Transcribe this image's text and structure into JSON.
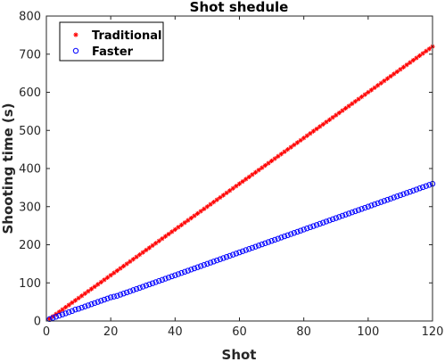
{
  "chart_data": {
    "type": "scatter",
    "title": "Shot shedule",
    "xlabel": "Shot",
    "ylabel": "Shooting time (s)",
    "xlim": [
      0,
      120
    ],
    "ylim": [
      0,
      800
    ],
    "xticks": [
      0,
      20,
      40,
      60,
      80,
      100,
      120
    ],
    "yticks": [
      0,
      100,
      200,
      300,
      400,
      500,
      600,
      700,
      800
    ],
    "grid": false,
    "legend_position": "top-left",
    "series": [
      {
        "name": "Traditional",
        "marker": "asterisk",
        "color": "#ff0000",
        "x": [
          1,
          2,
          3,
          4,
          5,
          6,
          7,
          8,
          9,
          10,
          11,
          12,
          13,
          14,
          15,
          16,
          17,
          18,
          19,
          20,
          21,
          22,
          23,
          24,
          25,
          26,
          27,
          28,
          29,
          30,
          31,
          32,
          33,
          34,
          35,
          36,
          37,
          38,
          39,
          40,
          41,
          42,
          43,
          44,
          45,
          46,
          47,
          48,
          49,
          50,
          51,
          52,
          53,
          54,
          55,
          56,
          57,
          58,
          59,
          60,
          61,
          62,
          63,
          64,
          65,
          66,
          67,
          68,
          69,
          70,
          71,
          72,
          73,
          74,
          75,
          76,
          77,
          78,
          79,
          80,
          81,
          82,
          83,
          84,
          85,
          86,
          87,
          88,
          89,
          90,
          91,
          92,
          93,
          94,
          95,
          96,
          97,
          98,
          99,
          100,
          101,
          102,
          103,
          104,
          105,
          106,
          107,
          108,
          109,
          110,
          111,
          112,
          113,
          114,
          115,
          116,
          117,
          118,
          119,
          120
        ],
        "y": [
          6,
          12,
          18,
          24,
          30,
          36,
          42,
          48,
          54,
          60,
          66,
          72,
          78,
          84,
          90,
          96,
          102,
          108,
          114,
          120,
          126,
          132,
          138,
          144,
          150,
          156,
          162,
          168,
          174,
          180,
          186,
          192,
          198,
          204,
          210,
          216,
          222,
          228,
          234,
          240,
          246,
          252,
          258,
          264,
          270,
          276,
          282,
          288,
          294,
          300,
          306,
          312,
          318,
          324,
          330,
          336,
          342,
          348,
          354,
          360,
          366,
          372,
          378,
          384,
          390,
          396,
          402,
          408,
          414,
          420,
          426,
          432,
          438,
          444,
          450,
          456,
          462,
          468,
          474,
          480,
          486,
          492,
          498,
          504,
          510,
          516,
          522,
          528,
          534,
          540,
          546,
          552,
          558,
          564,
          570,
          576,
          582,
          588,
          594,
          600,
          606,
          612,
          618,
          624,
          630,
          636,
          642,
          648,
          654,
          660,
          666,
          672,
          678,
          684,
          690,
          696,
          702,
          708,
          714,
          720
        ]
      },
      {
        "name": "Faster",
        "marker": "circle",
        "color": "#0000ff",
        "x": [
          1,
          2,
          3,
          4,
          5,
          6,
          7,
          8,
          9,
          10,
          11,
          12,
          13,
          14,
          15,
          16,
          17,
          18,
          19,
          20,
          21,
          22,
          23,
          24,
          25,
          26,
          27,
          28,
          29,
          30,
          31,
          32,
          33,
          34,
          35,
          36,
          37,
          38,
          39,
          40,
          41,
          42,
          43,
          44,
          45,
          46,
          47,
          48,
          49,
          50,
          51,
          52,
          53,
          54,
          55,
          56,
          57,
          58,
          59,
          60,
          61,
          62,
          63,
          64,
          65,
          66,
          67,
          68,
          69,
          70,
          71,
          72,
          73,
          74,
          75,
          76,
          77,
          78,
          79,
          80,
          81,
          82,
          83,
          84,
          85,
          86,
          87,
          88,
          89,
          90,
          91,
          92,
          93,
          94,
          95,
          96,
          97,
          98,
          99,
          100,
          101,
          102,
          103,
          104,
          105,
          106,
          107,
          108,
          109,
          110,
          111,
          112,
          113,
          114,
          115,
          116,
          117,
          118,
          119,
          120
        ],
        "y": [
          5,
          8,
          11,
          14,
          17,
          20,
          23,
          26,
          30,
          32,
          35,
          38,
          41,
          44,
          47,
          50,
          53,
          56,
          59,
          62,
          64,
          66,
          69,
          72,
          75,
          78,
          81,
          84,
          87,
          90,
          93,
          96,
          99,
          102,
          105,
          108,
          111,
          114,
          117,
          120,
          123,
          126,
          129,
          132,
          135,
          138,
          141,
          144,
          147,
          150,
          153,
          156,
          159,
          162,
          165,
          168,
          171,
          174,
          177,
          180,
          183,
          186,
          189,
          192,
          195,
          198,
          201,
          204,
          207,
          210,
          213,
          216,
          219,
          222,
          225,
          228,
          231,
          234,
          237,
          240,
          243,
          246,
          249,
          252,
          255,
          258,
          261,
          264,
          267,
          270,
          273,
          276,
          279,
          282,
          285,
          288,
          291,
          294,
          297,
          300,
          303,
          306,
          309,
          312,
          315,
          318,
          321,
          324,
          327,
          330,
          333,
          336,
          339,
          342,
          345,
          348,
          351,
          354,
          357,
          360
        ]
      }
    ]
  }
}
